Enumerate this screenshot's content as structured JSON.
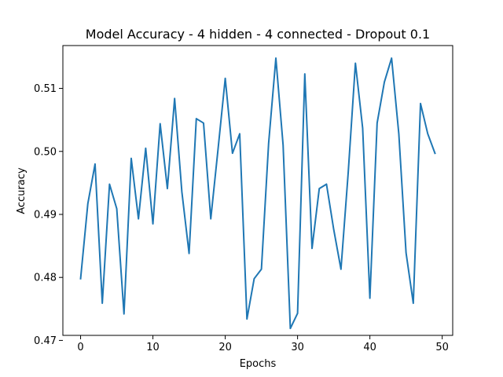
{
  "chart_data": {
    "type": "line",
    "title": "Model Accuracy - 4 hidden - 4 connected - Dropout 0.1",
    "xlabel": "Epochs",
    "ylabel": "Accuracy",
    "xlim": [
      -2.45,
      51.45
    ],
    "ylim": [
      0.4708,
      0.5168
    ],
    "xticks": [
      0,
      10,
      20,
      30,
      40,
      50
    ],
    "xtick_labels": [
      "0",
      "10",
      "20",
      "30",
      "40",
      "50"
    ],
    "yticks": [
      0.47,
      0.48,
      0.49,
      0.5,
      0.51
    ],
    "ytick_labels": [
      "0.47",
      "0.48",
      "0.49",
      "0.50",
      "0.51"
    ],
    "grid": false,
    "series": [
      {
        "color": "#1f77b4",
        "x": [
          0,
          1,
          2,
          3,
          4,
          5,
          6,
          7,
          8,
          9,
          10,
          11,
          12,
          13,
          14,
          15,
          16,
          17,
          18,
          19,
          20,
          21,
          22,
          23,
          24,
          25,
          26,
          27,
          28,
          29,
          30,
          31,
          32,
          33,
          34,
          35,
          36,
          37,
          38,
          39,
          40,
          41,
          42,
          43,
          44,
          45,
          46,
          47,
          48,
          49
        ],
        "y": [
          0.4798,
          0.4917,
          0.498,
          0.4759,
          0.4948,
          0.4909,
          0.4742,
          0.4989,
          0.4893,
          0.5005,
          0.4885,
          0.5044,
          0.4941,
          0.5084,
          0.4936,
          0.4838,
          0.5052,
          0.5045,
          0.4893,
          0.5003,
          0.5116,
          0.4997,
          0.5028,
          0.4734,
          0.4798,
          0.4813,
          0.5013,
          0.5148,
          0.501,
          0.4719,
          0.4743,
          0.5123,
          0.4846,
          0.4941,
          0.4948,
          0.4876,
          0.4813,
          0.4966,
          0.514,
          0.5037,
          0.4767,
          0.5045,
          0.511,
          0.5148,
          0.5028,
          0.4839,
          0.4759,
          0.5076,
          0.5028,
          0.4997
        ]
      }
    ]
  }
}
